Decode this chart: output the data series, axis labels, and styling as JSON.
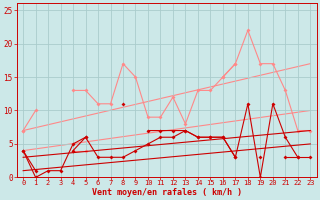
{
  "bg_color": "#cce8e8",
  "grid_color": "#aacccc",
  "dark_red": "#cc0000",
  "light_red": "#ff8888",
  "xlabel": "Vent moyen/en rafales ( km/h )",
  "ylim": [
    0,
    26
  ],
  "xlim": [
    -0.5,
    23.5
  ],
  "xticks": [
    0,
    1,
    2,
    3,
    4,
    5,
    6,
    7,
    8,
    9,
    10,
    11,
    12,
    13,
    14,
    15,
    16,
    17,
    18,
    19,
    20,
    21,
    22,
    23
  ],
  "yticks": [
    0,
    5,
    10,
    15,
    20,
    25
  ],
  "series": [
    {
      "color": "light",
      "data": [
        7,
        10,
        null,
        null,
        13,
        13,
        11,
        11,
        17,
        15,
        9,
        9,
        12,
        8,
        13,
        13,
        15,
        17,
        22,
        17,
        17,
        13,
        7,
        7
      ]
    },
    {
      "color": "light",
      "data": [
        7,
        null,
        null,
        null,
        4,
        4,
        null,
        null,
        null,
        null,
        null,
        null,
        null,
        null,
        null,
        null,
        null,
        null,
        null,
        null,
        null,
        null,
        null,
        null
      ]
    },
    {
      "color": "light",
      "data": [
        null,
        null,
        null,
        null,
        null,
        null,
        null,
        null,
        null,
        null,
        null,
        null,
        null,
        null,
        null,
        null,
        15,
        17,
        null,
        null,
        null,
        null,
        null,
        null
      ]
    },
    {
      "color": "light_trend",
      "x": [
        0,
        23
      ],
      "y": [
        7,
        17
      ]
    },
    {
      "color": "light_trend",
      "x": [
        0,
        23
      ],
      "y": [
        4,
        10
      ]
    },
    {
      "color": "dark",
      "data": [
        4,
        1,
        null,
        null,
        4,
        6,
        null,
        null,
        11,
        null,
        7,
        7,
        7,
        7,
        6,
        6,
        6,
        3,
        11,
        0,
        11,
        6,
        3,
        null
      ]
    },
    {
      "color": "dark",
      "data": [
        4,
        0,
        1,
        1,
        5,
        6,
        3,
        3,
        3,
        4,
        5,
        6,
        6,
        7,
        6,
        6,
        6,
        3,
        null,
        3,
        null,
        3,
        3,
        3
      ]
    },
    {
      "color": "dark",
      "data": [
        null,
        null,
        null,
        null,
        null,
        null,
        null,
        null,
        null,
        null,
        null,
        null,
        null,
        null,
        null,
        null,
        null,
        null,
        null,
        null,
        null,
        null,
        null,
        null
      ]
    },
    {
      "color": "dark_trend",
      "x": [
        0,
        23
      ],
      "y": [
        1,
        5
      ]
    },
    {
      "color": "dark_trend",
      "x": [
        0,
        23
      ],
      "y": [
        3,
        7
      ]
    }
  ]
}
